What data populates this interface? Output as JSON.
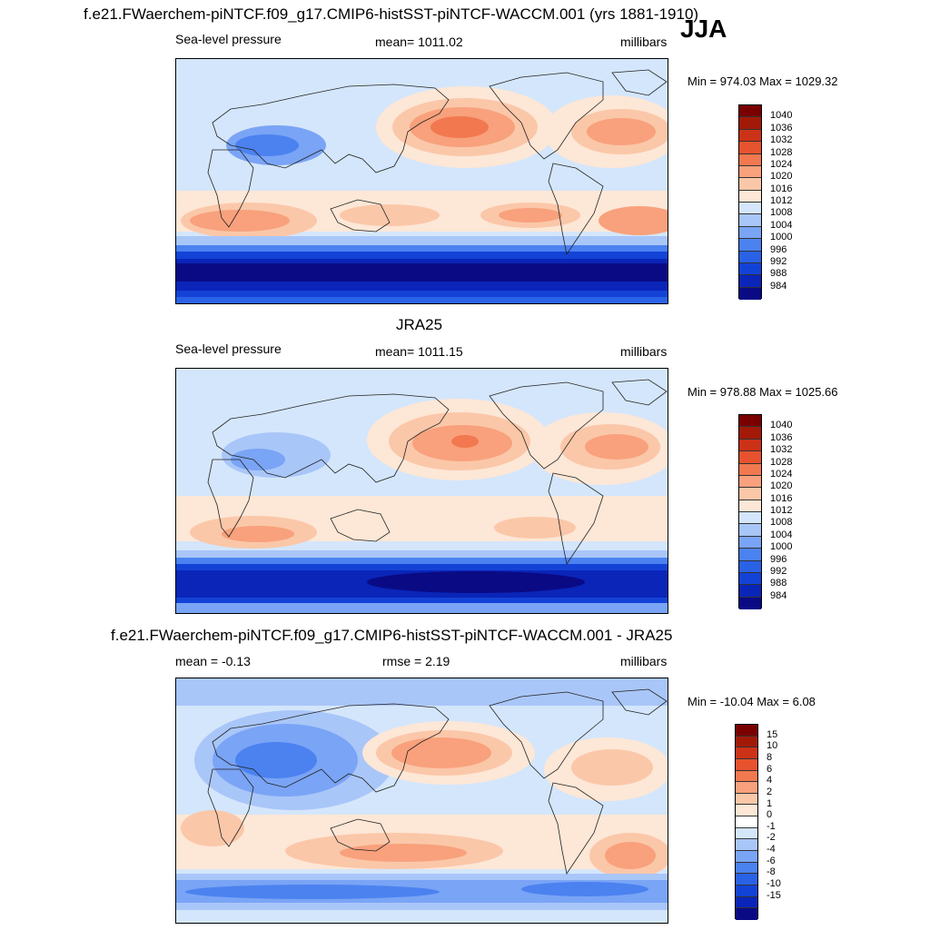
{
  "season": "JJA",
  "colors": {
    "abs_scale": [
      "#0a0a85",
      "#0a25b8",
      "#1343d6",
      "#2a62e6",
      "#4b82f0",
      "#7aa4f5",
      "#a9c6f9",
      "#d4e6fb",
      "#fde7d6",
      "#fbc7a9",
      "#f8a17c",
      "#f27850",
      "#e6532e",
      "#cc3217",
      "#a21a07",
      "#7a0000"
    ],
    "diff_scale": [
      "#0a0a85",
      "#0a25b8",
      "#1343d6",
      "#2a62e6",
      "#4b82f0",
      "#7aa4f5",
      "#a9c6f9",
      "#d4e6fb",
      "#ffffff",
      "#fde7d6",
      "#fbc7a9",
      "#f8a17c",
      "#f27850",
      "#e6532e",
      "#cc3217",
      "#a21a07",
      "#7a0000"
    ],
    "coast": "#222222"
  },
  "panels": [
    {
      "title": "f.e21.FWaerchem-piNTCF.f09_g17.CMIP6-histSST-piNTCF-WACCM.001 (yrs 1881-1910)",
      "left_label": "Sea-level pressure",
      "center_label": "mean= 1011.02",
      "right_label": "millibars",
      "minmax": "Min = 974.03 Max = 1029.32",
      "levels": [
        "1040",
        "1036",
        "1032",
        "1028",
        "1024",
        "1020",
        "1016",
        "1012",
        "1008",
        "1004",
        "1000",
        "996",
        "992",
        "988",
        "984"
      ]
    },
    {
      "title": "JRA25",
      "left_label": "Sea-level pressure",
      "center_label": "mean= 1011.15",
      "right_label": "millibars",
      "minmax": "Min = 978.88 Max = 1025.66",
      "levels": [
        "1040",
        "1036",
        "1032",
        "1028",
        "1024",
        "1020",
        "1016",
        "1012",
        "1008",
        "1004",
        "1000",
        "996",
        "992",
        "988",
        "984"
      ]
    },
    {
      "title": "f.e21.FWaerchem-piNTCF.f09_g17.CMIP6-histSST-piNTCF-WACCM.001 - JRA25",
      "left_label": "mean =  -0.13",
      "center_label": "rmse =   2.19",
      "right_label": "millibars",
      "minmax": "Min = -10.04 Max =   6.08",
      "levels": [
        "15",
        "10",
        "8",
        "6",
        "4",
        "2",
        "1",
        "0",
        "-1",
        "-2",
        "-4",
        "-6",
        "-8",
        "-10",
        "-15"
      ]
    }
  ],
  "chart_data": [
    {
      "type": "heatmap",
      "title": "f.e21.FWaerchem-piNTCF.f09_g17.CMIP6-histSST-piNTCF-WACCM.001 (yrs 1881-1910)",
      "variable": "Sea-level pressure",
      "units": "millibars",
      "season": "JJA",
      "mean": 1011.02,
      "min": 974.03,
      "max": 1029.32,
      "colorbar_levels": [
        1040,
        1036,
        1032,
        1028,
        1024,
        1020,
        1016,
        1012,
        1008,
        1004,
        1000,
        996,
        992,
        988,
        984
      ]
    },
    {
      "type": "heatmap",
      "title": "JRA25",
      "variable": "Sea-level pressure",
      "units": "millibars",
      "mean": 1011.15,
      "min": 978.88,
      "max": 1025.66,
      "colorbar_levels": [
        1040,
        1036,
        1032,
        1028,
        1024,
        1020,
        1016,
        1012,
        1008,
        1004,
        1000,
        996,
        992,
        988,
        984
      ]
    },
    {
      "type": "heatmap",
      "title": "f.e21.FWaerchem-piNTCF.f09_g17.CMIP6-histSST-piNTCF-WACCM.001 - JRA25",
      "units": "millibars",
      "mean": -0.13,
      "rmse": 2.19,
      "min": -10.04,
      "max": 6.08,
      "colorbar_levels": [
        15,
        10,
        8,
        6,
        4,
        2,
        1,
        0,
        -1,
        -2,
        -4,
        -6,
        -8,
        -10,
        -15
      ]
    }
  ]
}
